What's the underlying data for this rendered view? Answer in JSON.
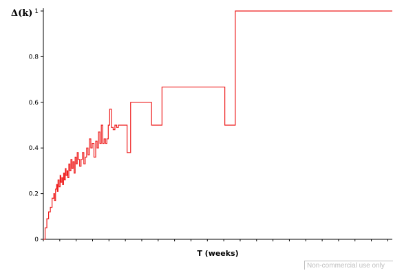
{
  "chart_data": {
    "type": "line",
    "title": "",
    "xlabel": "T (weeks)",
    "ylabel": "Δ(k)",
    "ylim": [
      0,
      1
    ],
    "yticks": [
      0,
      0.2,
      0.4,
      0.6,
      0.8,
      1
    ],
    "ytick_labels": [
      "0",
      "0.2",
      "0.4",
      "0.6",
      "0.8",
      "1"
    ],
    "xlim": [
      0,
      100
    ],
    "xticks_minor": [
      0,
      4.7,
      9.4,
      14.1,
      18.8,
      23.5,
      28.2,
      32.9,
      37.6,
      42.3,
      47.0,
      51.7,
      56.4,
      61.1,
      65.8,
      70.5,
      75.2,
      79.9,
      84.6,
      89.3,
      94.0,
      98.7
    ],
    "grid": false,
    "line_color": "#ee1c1c",
    "step": true,
    "series": [
      {
        "x": [
          0,
          0.5,
          1.0,
          1.5,
          2.0,
          2.5,
          3.0,
          3.2,
          3.5,
          3.8,
          4.0,
          4.2,
          4.5,
          4.8,
          5.0,
          5.3,
          5.5,
          5.8,
          6.0,
          6.3,
          6.5,
          6.8,
          7.0,
          7.3,
          7.6,
          7.9,
          8.2,
          8.5,
          8.8,
          9.1,
          9.4,
          9.7,
          10.0,
          10.4,
          10.8,
          11.2,
          11.6,
          12.0,
          12.4,
          12.8,
          13.2,
          13.6,
          14.0,
          14.5,
          15.0,
          15.4,
          15.8,
          16.2,
          16.6,
          17.0,
          17.4,
          17.8,
          18.2,
          18.6,
          19.0,
          19.5,
          20.0,
          20.5,
          21.0,
          21.5,
          22.0,
          22.5,
          23.0,
          23.5,
          24.0,
          24.5,
          25.0,
          25.5,
          26.0,
          26.5,
          27.0,
          27.5,
          28.0,
          28.5,
          29.0,
          29.5,
          30.0,
          30.5,
          31.0,
          32.0,
          33.0,
          34.0,
          35.0,
          36.0,
          37.0,
          38.0,
          39.0,
          40.0,
          41.0,
          42.0,
          43.0,
          44.0,
          45.0,
          46.0,
          47.0,
          48.0,
          49.0,
          50.0,
          51.0,
          52.0,
          53.0,
          54.0,
          55.0,
          100.0
        ],
        "values": [
          0,
          0.05,
          0.09,
          0.12,
          0.14,
          0.18,
          0.2,
          0.17,
          0.22,
          0.24,
          0.21,
          0.26,
          0.23,
          0.28,
          0.25,
          0.27,
          0.24,
          0.29,
          0.26,
          0.31,
          0.28,
          0.3,
          0.27,
          0.33,
          0.3,
          0.35,
          0.31,
          0.34,
          0.29,
          0.36,
          0.33,
          0.38,
          0.35,
          0.32,
          0.35,
          0.38,
          0.33,
          0.36,
          0.4,
          0.37,
          0.44,
          0.4,
          0.42,
          0.36,
          0.43,
          0.4,
          0.47,
          0.42,
          0.5,
          0.42,
          0.44,
          0.42,
          0.44,
          0.5,
          0.57,
          0.49,
          0.48,
          0.5,
          0.49,
          0.5,
          0.5,
          0.5,
          0.5,
          0.5,
          0.38,
          0.38,
          0.6,
          0.6,
          0.6,
          0.6,
          0.6,
          0.6,
          0.6,
          0.6,
          0.6,
          0.6,
          0.6,
          0.6,
          0.5,
          0.5,
          0.5,
          0.667,
          0.667,
          0.667,
          0.667,
          0.667,
          0.667,
          0.667,
          0.667,
          0.667,
          0.667,
          0.667,
          0.667,
          0.667,
          0.667,
          0.667,
          0.667,
          0.667,
          0.667,
          0.5,
          0.5,
          0.5,
          1.0,
          1.0
        ]
      }
    ]
  },
  "watermark": "Non-commercial use only"
}
